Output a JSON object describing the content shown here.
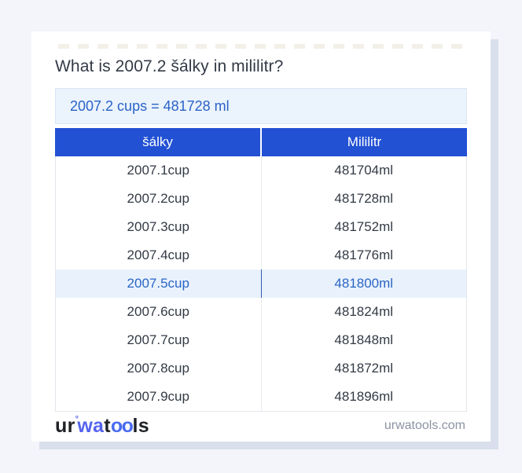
{
  "page": {
    "title": "What is 2007.2 šálky in mililitr?",
    "result_text": "2007.2 cups = 481728 ml"
  },
  "table": {
    "headers": [
      "šálky",
      "Mililitr"
    ],
    "highlighted_row_index": 4,
    "rows": [
      {
        "cups": "2007.1cup",
        "ml": "481704ml"
      },
      {
        "cups": "2007.2cup",
        "ml": "481728ml"
      },
      {
        "cups": "2007.3cup",
        "ml": "481752ml"
      },
      {
        "cups": "2007.4cup",
        "ml": "481776ml"
      },
      {
        "cups": "2007.5cup",
        "ml": "481800ml"
      },
      {
        "cups": "2007.6cup",
        "ml": "481824ml"
      },
      {
        "cups": "2007.7cup",
        "ml": "481848ml"
      },
      {
        "cups": "2007.8cup",
        "ml": "481872ml"
      },
      {
        "cups": "2007.9cup",
        "ml": "481896ml"
      }
    ]
  },
  "footer": {
    "logo": {
      "ur": "ur",
      "degree": "°",
      "wa": "wa",
      "t": "t",
      "oo": "oo",
      "ls": "ls"
    },
    "site": "urwatools.com"
  },
  "colors": {
    "page_background": "#f3f5fa",
    "card_background": "#ffffff",
    "card_shadow": "#d9dfec",
    "table_header_bg": "#2251d4",
    "table_header_text": "#ffffff",
    "result_box_bg": "#ebf3fc",
    "result_box_border": "#d9e7f7",
    "accent_blue_text": "#2a63c8",
    "highlight_row_bg": "#e9f2fc",
    "highlight_row_text": "#2a65c6",
    "body_text": "#333a45",
    "muted_text": "#8b93a3",
    "logo_dark": "#1e2126",
    "logo_blue": "#5562ee"
  }
}
